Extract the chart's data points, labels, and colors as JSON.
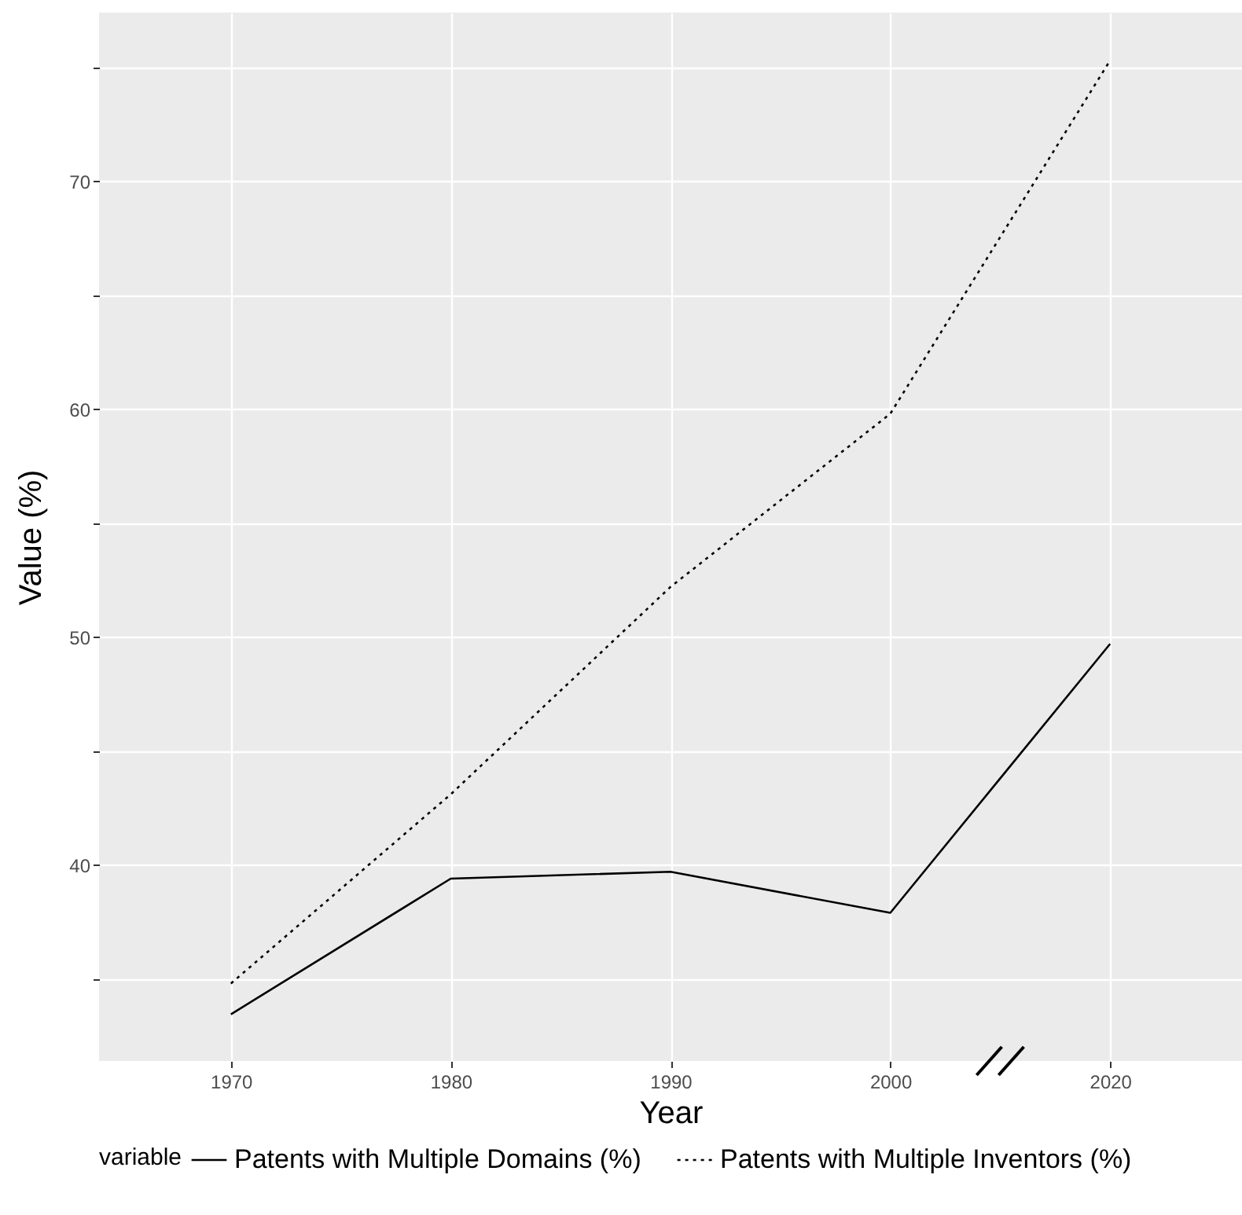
{
  "chart_data": {
    "type": "line",
    "xlabel": "Year",
    "ylabel": "Value (%)",
    "legend_title": "variable",
    "legend": "bottom",
    "grid": true,
    "categories": [
      "1970",
      "1980",
      "1990",
      "2000",
      "2020"
    ],
    "ylim": [
      31.4,
      77.4
    ],
    "yticks": [
      {
        "value": 35,
        "label": null
      },
      40,
      {
        "value": 45,
        "label": null
      },
      50,
      {
        "value": 55,
        "label": null
      },
      60,
      {
        "value": 65,
        "label": null
      },
      70,
      {
        "value": 75,
        "label": null
      }
    ],
    "series": [
      {
        "name": "Patents with Multiple Domains (%)",
        "color": "#000000",
        "line_style": "solid",
        "values": [
          33.45,
          39.4,
          39.7,
          37.9,
          49.7
        ]
      },
      {
        "name": "Patents with Multiple Inventors (%)",
        "color": "#000000",
        "line_style": "dotted",
        "values": [
          34.8,
          43.1,
          52.2,
          59.8,
          75.3
        ]
      }
    ]
  }
}
